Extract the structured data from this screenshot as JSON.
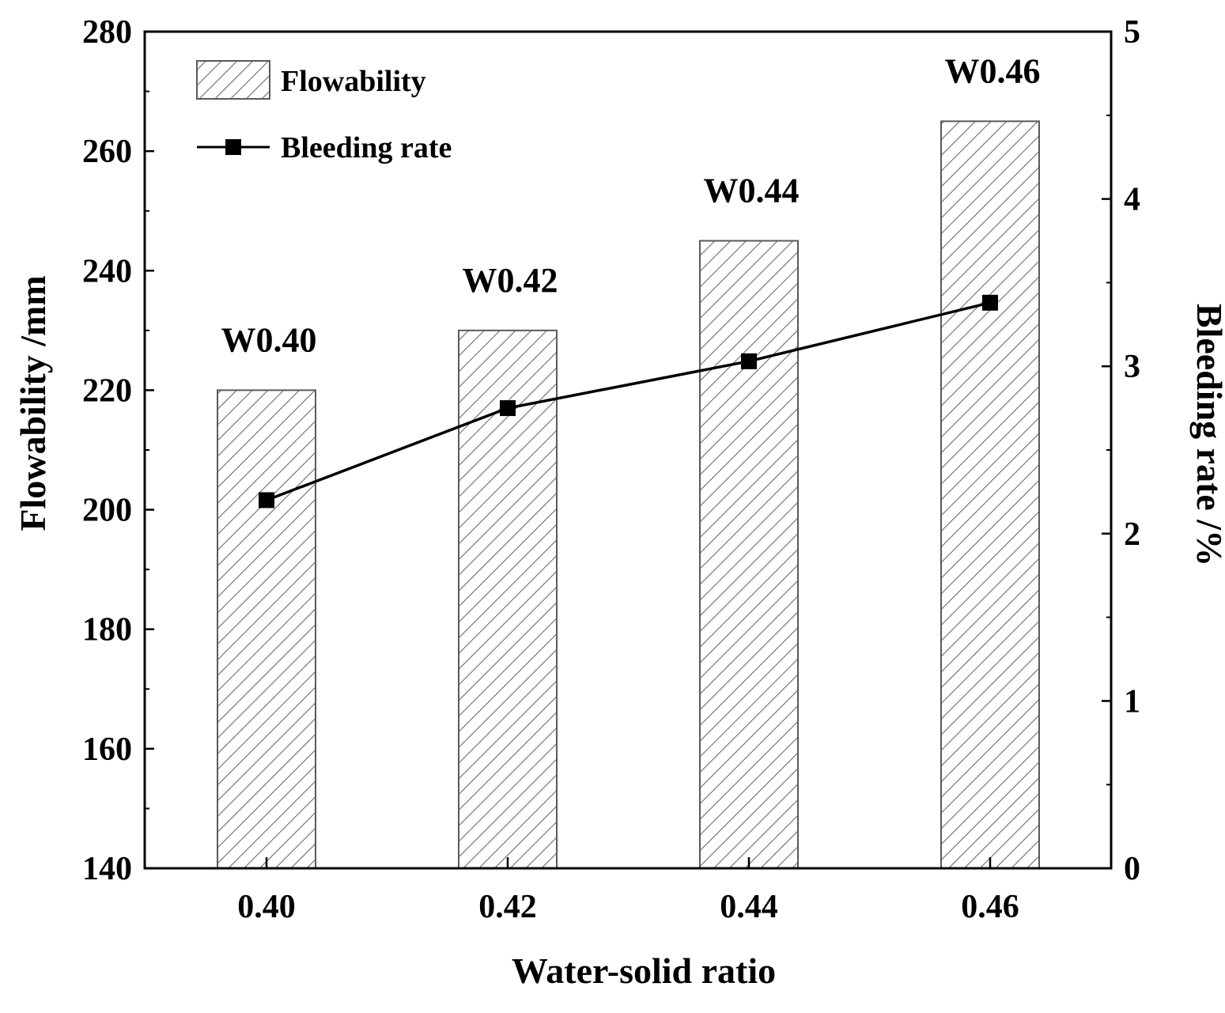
{
  "chart_data": {
    "type": "bar+line",
    "categories": [
      "0.40",
      "0.42",
      "0.44",
      "0.46"
    ],
    "x_values": [
      0.4,
      0.42,
      0.44,
      0.46
    ],
    "bar_labels": [
      "W0.40",
      "W0.42",
      "W0.44",
      "W0.46"
    ],
    "series": [
      {
        "name": "Flowability",
        "kind": "bar",
        "axis": "left",
        "values": [
          220,
          230,
          245,
          265
        ]
      },
      {
        "name": "Bleeding rate",
        "kind": "line",
        "axis": "right",
        "values": [
          2.2,
          2.75,
          3.03,
          3.38
        ]
      }
    ],
    "xlabel": "Water-solid ratio",
    "ylabel": "Flowability /mm",
    "y2label": "Bleeding rate /%",
    "ylim": [
      140,
      280
    ],
    "y2lim": [
      0,
      5
    ],
    "y_ticks": [
      "140",
      "160",
      "180",
      "200",
      "220",
      "240",
      "260",
      "280"
    ],
    "y2_ticks": [
      "0",
      "1",
      "2",
      "3",
      "4",
      "5"
    ],
    "legend_position": "top-left",
    "grid": false
  },
  "colors": {
    "axis": "#000000",
    "bar_stroke": "#5a5a5a",
    "hatch": "#6a6a6a",
    "line": "#000000"
  }
}
